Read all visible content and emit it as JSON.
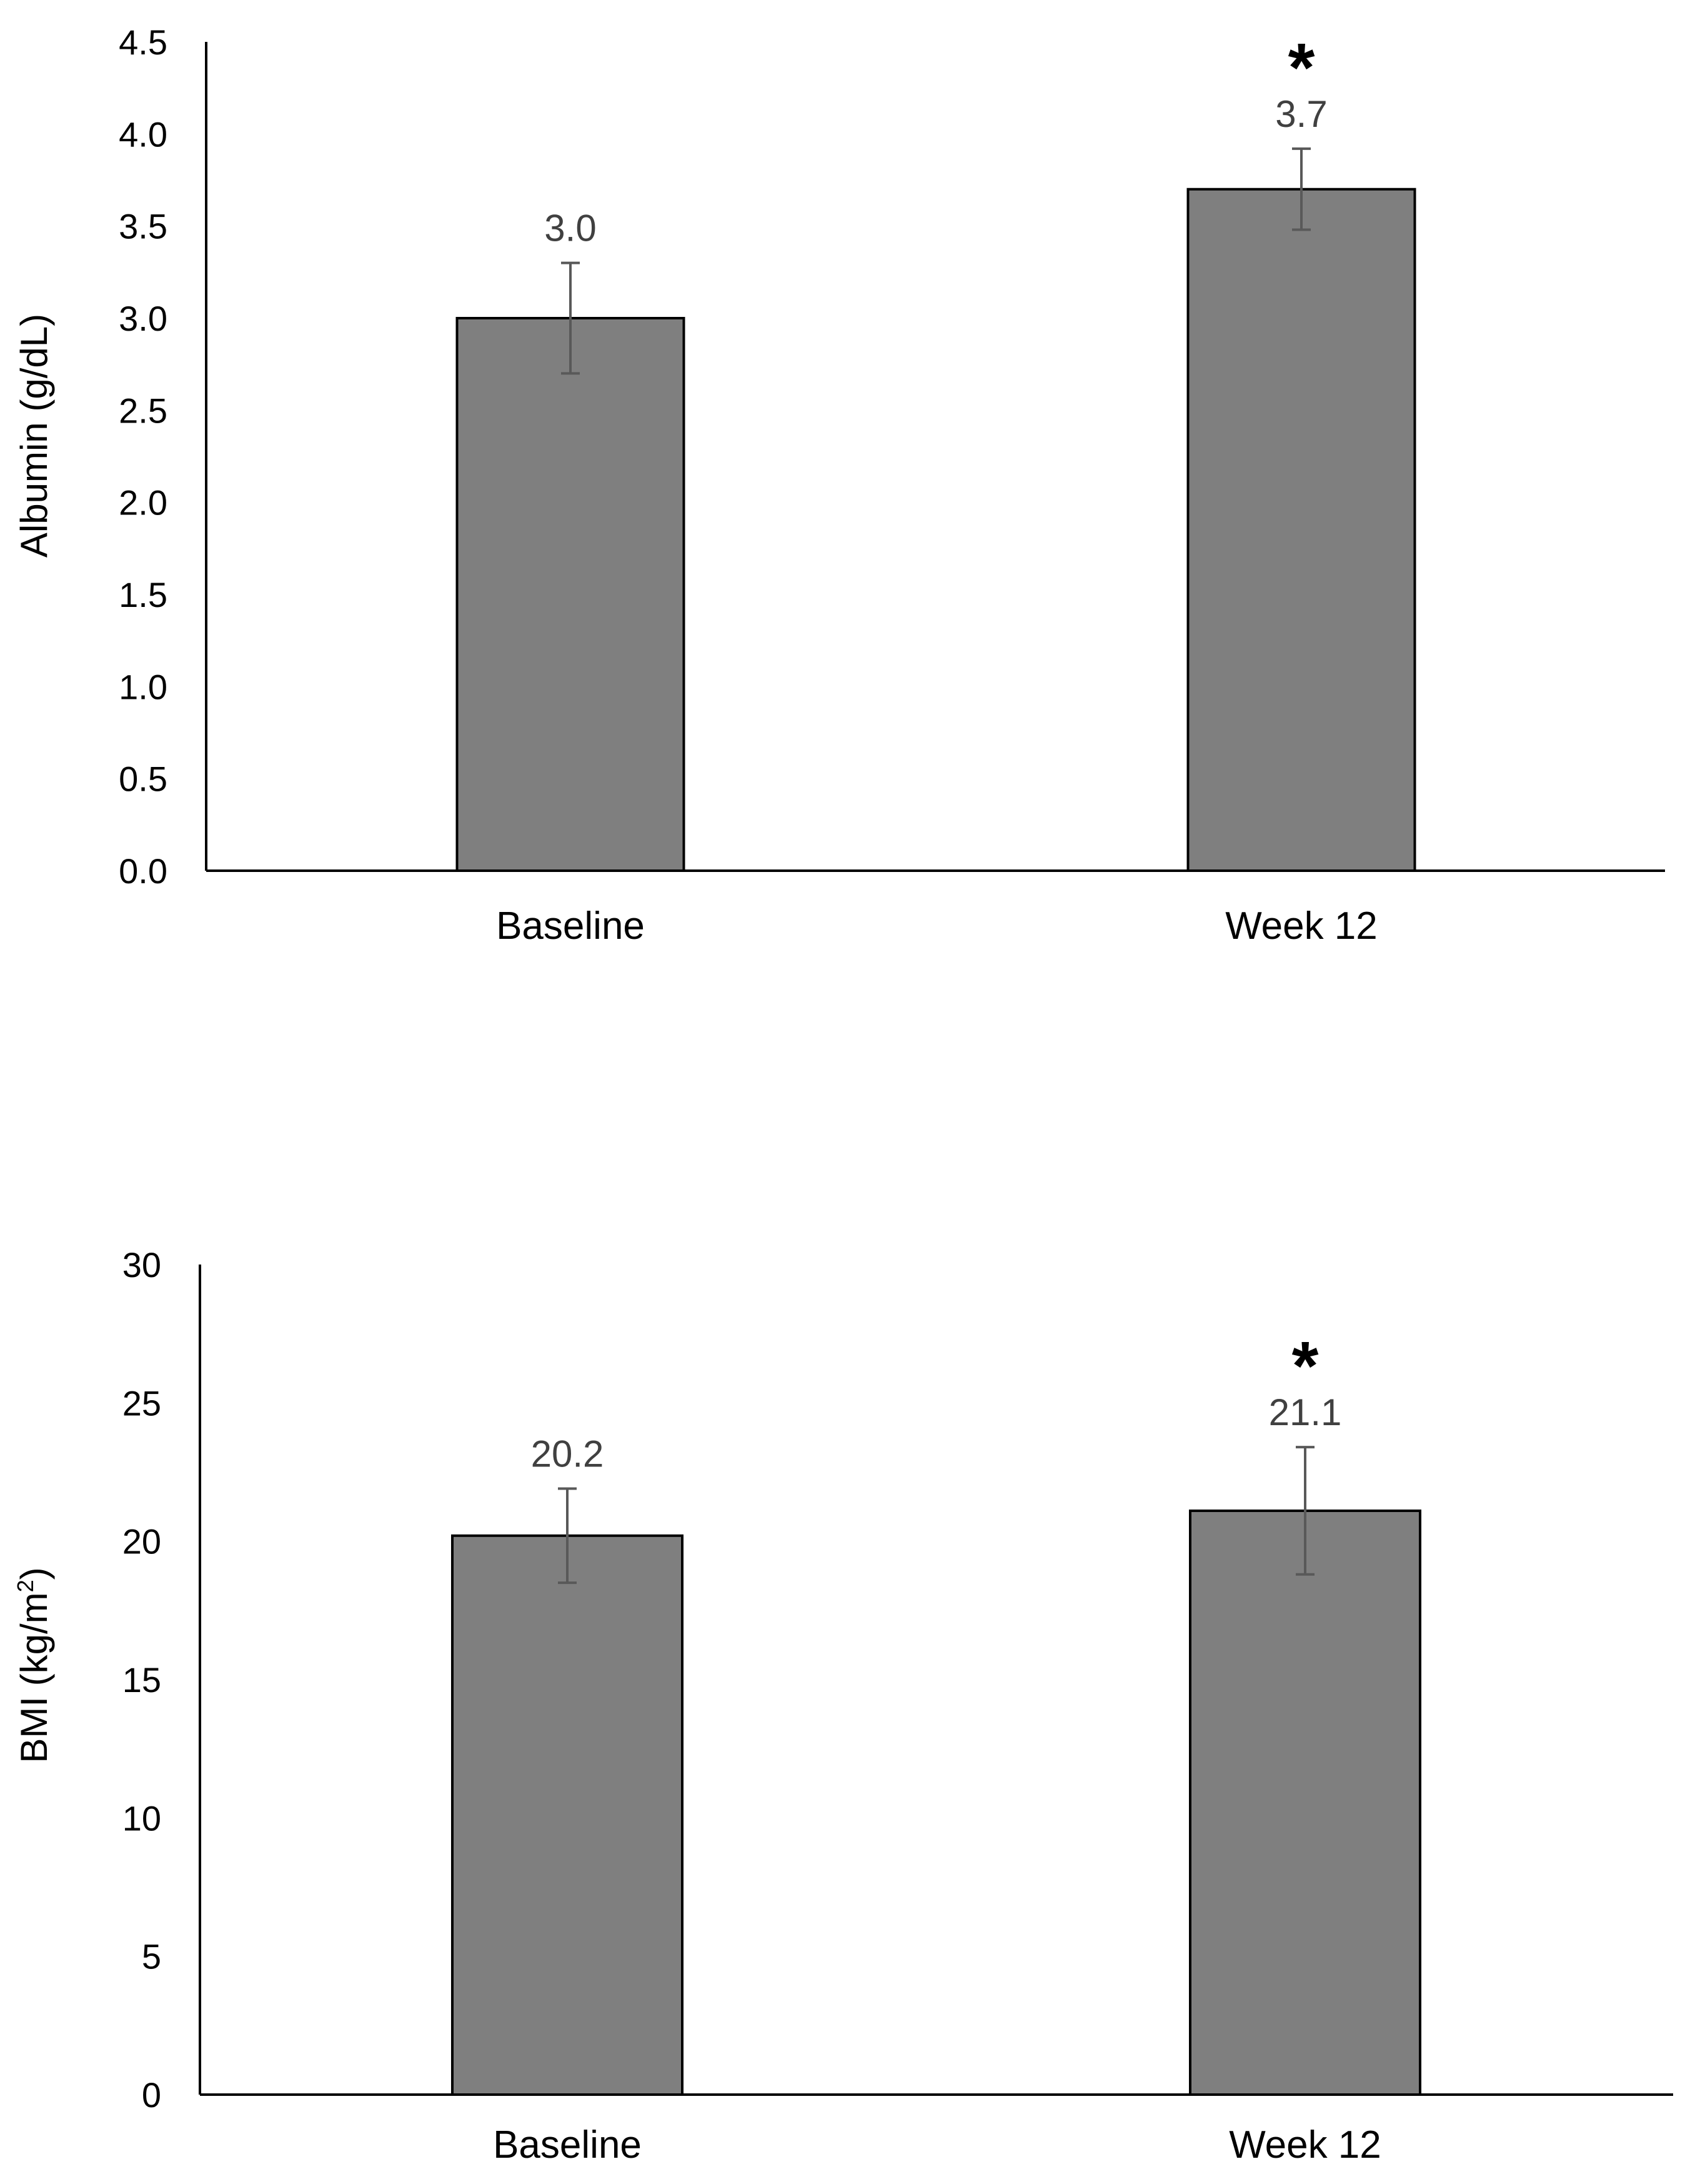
{
  "chart_data": [
    {
      "type": "bar",
      "title": "",
      "xlabel": "",
      "ylabel": "Albumin (g/dL)",
      "ylim": [
        0,
        4.5
      ],
      "yticks": [
        0.0,
        0.5,
        1.0,
        1.5,
        2.0,
        2.5,
        3.0,
        3.5,
        4.0,
        4.5
      ],
      "ytick_labels": [
        "0.0",
        "0.5",
        "1.0",
        "1.5",
        "2.0",
        "2.5",
        "3.0",
        "3.5",
        "4.0",
        "4.5"
      ],
      "categories": [
        "Baseline",
        "Week 12"
      ],
      "values": [
        3.0,
        3.7
      ],
      "error": [
        0.3,
        0.22
      ],
      "data_labels": [
        "3.0",
        "3.7"
      ],
      "significance": [
        "",
        "*"
      ],
      "bar_color": "#7f7f7f",
      "grid": false
    },
    {
      "type": "bar",
      "title": "",
      "xlabel": "",
      "ylabel": "BMI (kg/m",
      "ylabel_sup": "2",
      "ylabel_suffix": ")",
      "ylim": [
        0,
        30
      ],
      "yticks": [
        0,
        5,
        10,
        15,
        20,
        25,
        30
      ],
      "ytick_labels": [
        "0",
        "5",
        "10",
        "15",
        "20",
        "25",
        "30"
      ],
      "categories": [
        "Baseline",
        "Week 12"
      ],
      "values": [
        20.2,
        21.1
      ],
      "error": [
        1.7,
        2.3
      ],
      "data_labels": [
        "20.2",
        "21.1"
      ],
      "significance": [
        "",
        "*"
      ],
      "bar_color": "#7f7f7f",
      "grid": false
    }
  ]
}
